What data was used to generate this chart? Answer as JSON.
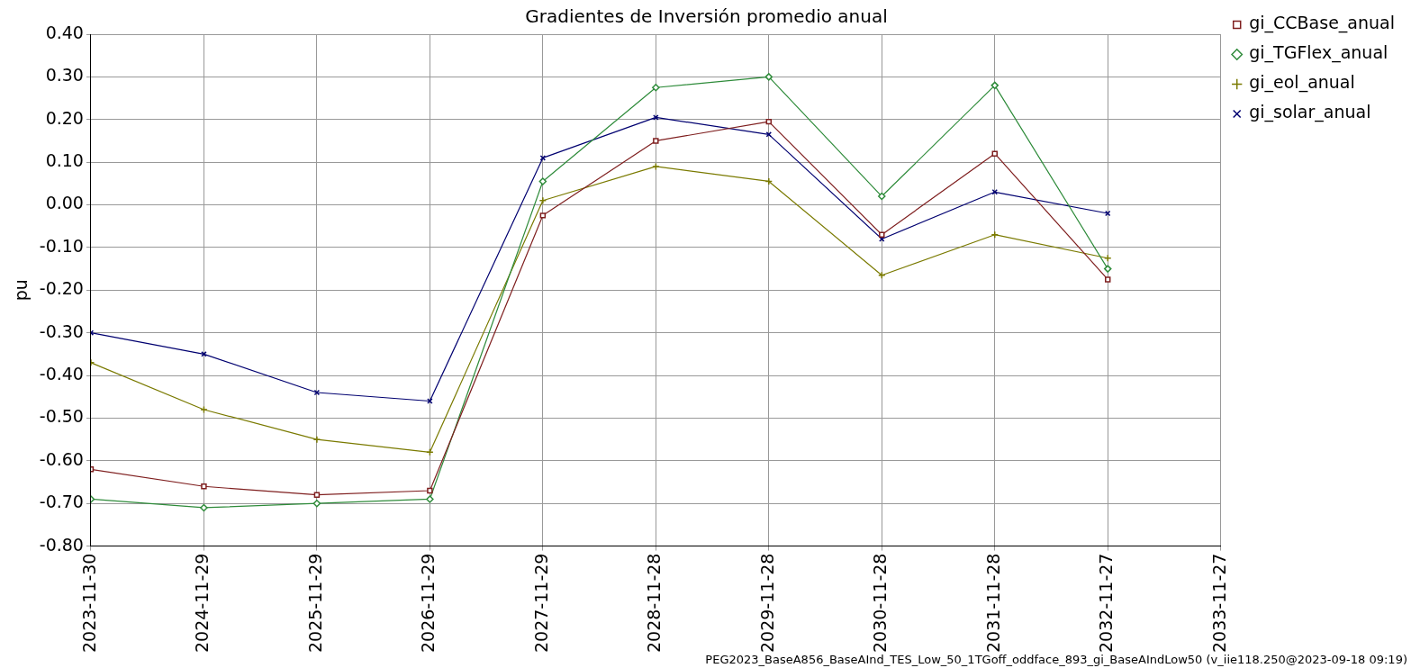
{
  "chart_data": {
    "type": "line",
    "title": "Gradientes de Inversión promedio anual",
    "ylabel": "pu",
    "x": [
      "2023-11-30",
      "2024-11-29",
      "2025-11-29",
      "2026-11-29",
      "2027-11-29",
      "2028-11-28",
      "2029-11-28",
      "2030-11-28",
      "2031-11-28",
      "2032-11-27"
    ],
    "series": [
      {
        "name": "gi_CCBase_anual",
        "color": "#7f1f1f",
        "marker": "square",
        "values": [
          -0.62,
          -0.66,
          -0.68,
          -0.67,
          -0.025,
          0.15,
          0.195,
          -0.07,
          0.12,
          -0.175
        ]
      },
      {
        "name": "gi_TGFlex_anual",
        "color": "#2e8b3a",
        "marker": "diamond",
        "values": [
          -0.69,
          -0.71,
          -0.7,
          -0.69,
          0.055,
          0.275,
          0.3,
          0.02,
          0.28,
          -0.15
        ]
      },
      {
        "name": "gi_eol_anual",
        "color": "#7a7a00",
        "marker": "cross",
        "values": [
          -0.37,
          -0.48,
          -0.55,
          -0.58,
          0.01,
          0.09,
          0.055,
          -0.165,
          -0.07,
          -0.125
        ]
      },
      {
        "name": "gi_solar_anual",
        "color": "#000070",
        "marker": "x",
        "values": [
          -0.3,
          -0.35,
          -0.44,
          -0.46,
          0.11,
          0.205,
          0.165,
          -0.08,
          0.03,
          -0.02
        ]
      }
    ],
    "xlim": [
      "2023-11-30",
      "2033-11-27"
    ],
    "xticks": [
      "2023-11-30",
      "2024-11-29",
      "2025-11-29",
      "2026-11-29",
      "2027-11-29",
      "2028-11-28",
      "2029-11-28",
      "2030-11-28",
      "2031-11-28",
      "2032-11-27",
      "2033-11-27"
    ],
    "ylim": [
      -0.8,
      0.4
    ],
    "yticks": [
      {
        "value": -0.8,
        "label": "-0.80"
      },
      {
        "value": -0.7,
        "label": "-0.70"
      },
      {
        "value": -0.6,
        "label": "-0.60"
      },
      {
        "value": -0.5,
        "label": "-0.50"
      },
      {
        "value": -0.4,
        "label": "-0.40"
      },
      {
        "value": -0.3,
        "label": "-0.30"
      },
      {
        "value": -0.2,
        "label": "-0.20"
      },
      {
        "value": -0.1,
        "label": "-0.10"
      },
      {
        "value": 0,
        "label": "0.00"
      },
      {
        "value": 0.1,
        "label": "0.10"
      },
      {
        "value": 0.2,
        "label": "0.20"
      },
      {
        "value": 0.3,
        "label": "0.30"
      },
      {
        "value": 0.4,
        "label": "0.40"
      }
    ],
    "grid": true,
    "legend": "top right",
    "line_style": "solid",
    "annotations": [
      "PEG2023_BaseA856_BaseAInd_TES_Low_50_1TGoff_oddface_893_gi_BaseAIndLow50 (v_iie118.250@2023-09-18 09:19)"
    ]
  }
}
